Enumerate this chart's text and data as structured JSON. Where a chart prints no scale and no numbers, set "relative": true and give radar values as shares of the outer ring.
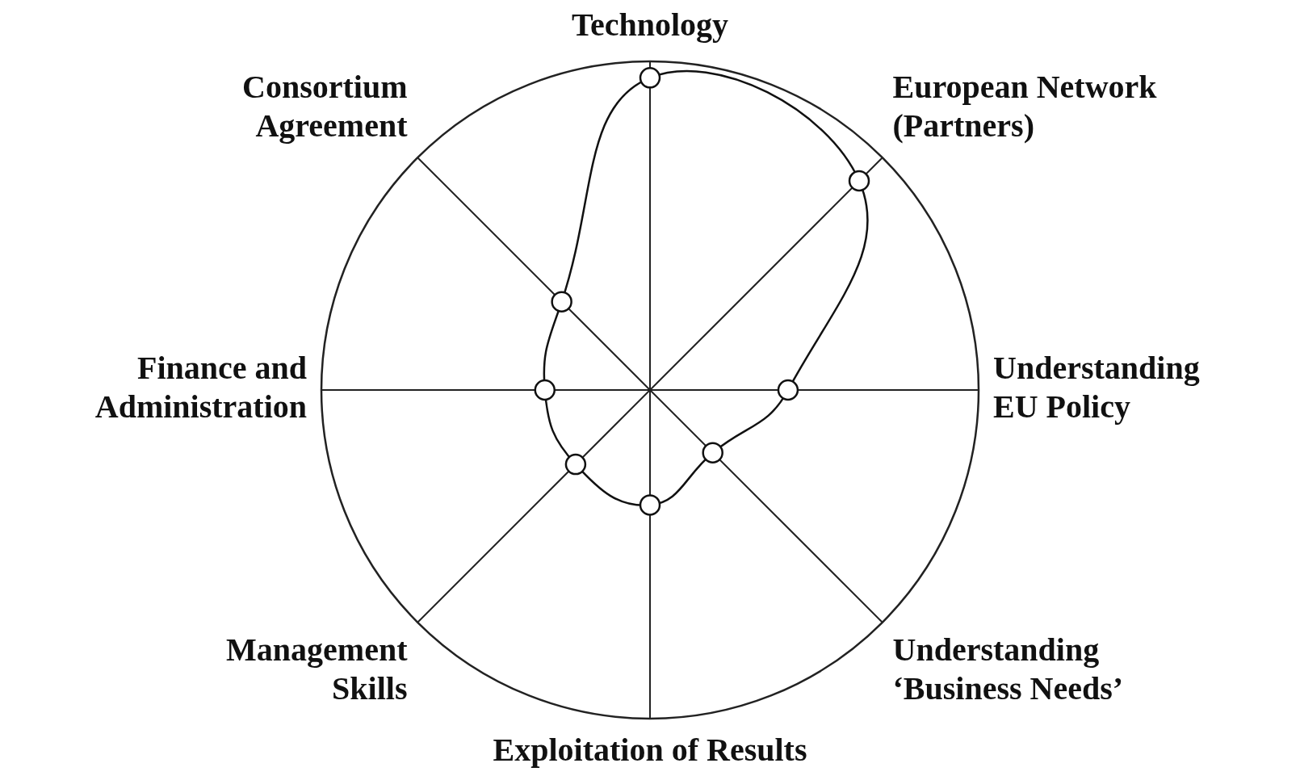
{
  "chart_data": {
    "type": "radar",
    "relative": true,
    "categories": [
      "Technology",
      "European Network (Partners)",
      "Understanding EU Policy",
      "Understanding ‘Business Needs’",
      "Exploitation of Results",
      "Management Skills",
      "Finance and Administration",
      "Consortium Agreement"
    ],
    "series": [
      {
        "color": "#111111",
        "values": [
          0.95,
          0.9,
          0.42,
          0.27,
          0.35,
          0.32,
          0.32,
          0.38
        ]
      }
    ],
    "marker": "circle",
    "line_style": "solid",
    "legend": false
  }
}
